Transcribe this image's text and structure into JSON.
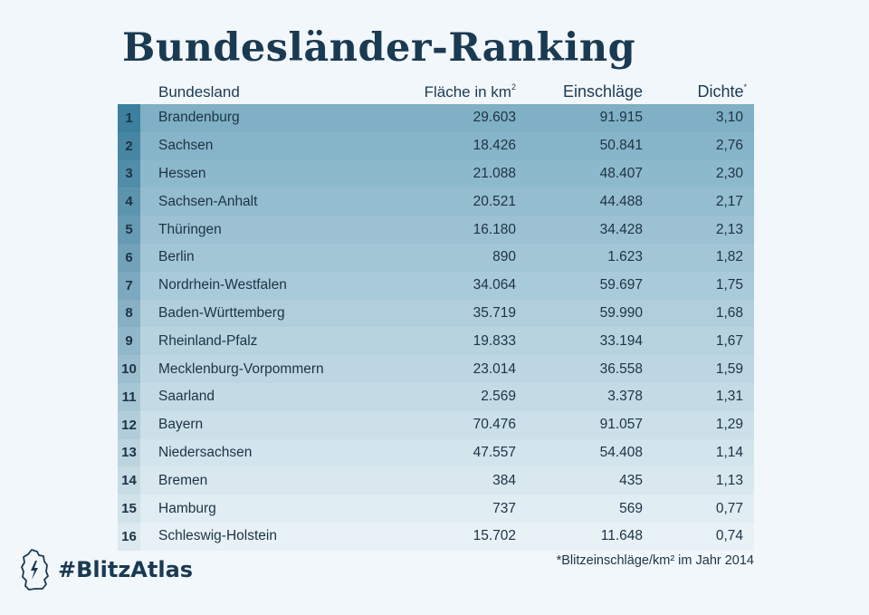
{
  "title": "Bundesländer-Ranking",
  "headers": {
    "name": "Bundesland",
    "area": "Fläche in km",
    "area_sup": "2",
    "hits": "Einschläge",
    "density": "Dichte",
    "density_sup": "*"
  },
  "chart_data": {
    "type": "table",
    "columns": [
      "",
      "Bundesland",
      "Fläche in km²",
      "Einschläge",
      "Dichte*"
    ],
    "rows": [
      {
        "rank": "1",
        "name": "Brandenburg",
        "area": "29.603",
        "hits": "91.915",
        "density": "3,10"
      },
      {
        "rank": "2",
        "name": "Sachsen",
        "area": "18.426",
        "hits": "50.841",
        "density": "2,76"
      },
      {
        "rank": "3",
        "name": "Hessen",
        "area": "21.088",
        "hits": "48.407",
        "density": "2,30"
      },
      {
        "rank": "4",
        "name": "Sachsen-Anhalt",
        "area": "20.521",
        "hits": "44.488",
        "density": "2,17"
      },
      {
        "rank": "5",
        "name": "Thüringen",
        "area": "16.180",
        "hits": "34.428",
        "density": "2,13"
      },
      {
        "rank": "6",
        "name": "Berlin",
        "area": "890",
        "hits": "1.623",
        "density": "1,82"
      },
      {
        "rank": "7",
        "name": "Nordrhein-Westfalen",
        "area": "34.064",
        "hits": "59.697",
        "density": "1,75"
      },
      {
        "rank": "8",
        "name": "Baden-Württemberg",
        "area": "35.719",
        "hits": "59.990",
        "density": "1,68"
      },
      {
        "rank": "9",
        "name": "Rheinland-Pfalz",
        "area": "19.833",
        "hits": "33.194",
        "density": "1,67"
      },
      {
        "rank": "10",
        "name": "Mecklenburg-Vorpommern",
        "area": "23.014",
        "hits": "36.558",
        "density": "1,59"
      },
      {
        "rank": "11",
        "name": "Saarland",
        "area": "2.569",
        "hits": "3.378",
        "density": "1,31"
      },
      {
        "rank": "12",
        "name": "Bayern",
        "area": "70.476",
        "hits": "91.057",
        "density": "1,29"
      },
      {
        "rank": "13",
        "name": "Niedersachsen",
        "area": "47.557",
        "hits": "54.408",
        "density": "1,14"
      },
      {
        "rank": "14",
        "name": "Bremen",
        "area": "384",
        "hits": "435",
        "density": "1,13"
      },
      {
        "rank": "15",
        "name": "Hamburg",
        "area": "737",
        "hits": "569",
        "density": "0,77"
      },
      {
        "rank": "16",
        "name": "Schleswig-Holstein",
        "area": "15.702",
        "hits": "11.648",
        "density": "0,74"
      }
    ]
  },
  "footnote": "*Blitzeinschläge/km² im Jahr 2014",
  "brand": {
    "text": "#BlitzAtlas",
    "icon": "germany-map-lightning-icon"
  },
  "colors": {
    "row_start": "#7fb0c5",
    "row_end": "#e7f1f6",
    "rank_start": "#3c7f9e",
    "rank_end": "#dce9f0",
    "title": "#1a3a52"
  }
}
